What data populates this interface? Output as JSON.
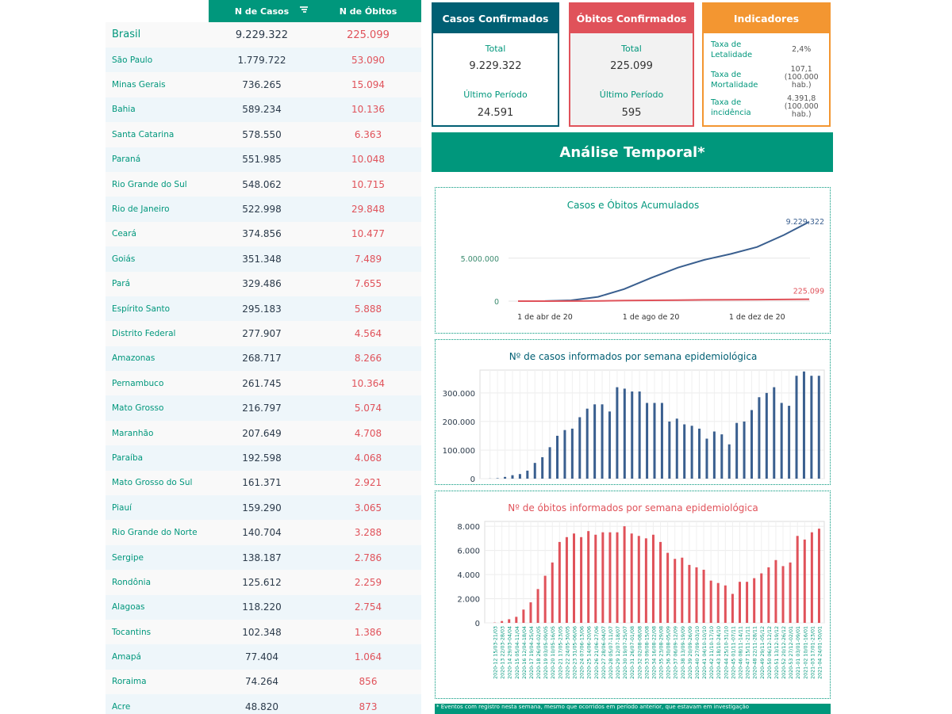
{
  "table": {
    "col_cases": "N de Casos",
    "col_deaths": "N de Óbitos",
    "rows": [
      {
        "name": "Brasil",
        "cases": "9.229.322",
        "deaths": "225.099"
      },
      {
        "name": "São Paulo",
        "cases": "1.779.722",
        "deaths": "53.090"
      },
      {
        "name": "Minas Gerais",
        "cases": "736.265",
        "deaths": "15.094"
      },
      {
        "name": "Bahia",
        "cases": "589.234",
        "deaths": "10.136"
      },
      {
        "name": "Santa Catarina",
        "cases": "578.550",
        "deaths": "6.363"
      },
      {
        "name": "Paraná",
        "cases": "551.985",
        "deaths": "10.048"
      },
      {
        "name": "Rio Grande do Sul",
        "cases": "548.062",
        "deaths": "10.715"
      },
      {
        "name": "Rio de Janeiro",
        "cases": "522.998",
        "deaths": "29.848"
      },
      {
        "name": "Ceará",
        "cases": "374.856",
        "deaths": "10.477"
      },
      {
        "name": "Goiás",
        "cases": "351.348",
        "deaths": "7.489"
      },
      {
        "name": "Pará",
        "cases": "329.486",
        "deaths": "7.655"
      },
      {
        "name": "Espírito Santo",
        "cases": "295.183",
        "deaths": "5.888"
      },
      {
        "name": "Distrito Federal",
        "cases": "277.907",
        "deaths": "4.564"
      },
      {
        "name": "Amazonas",
        "cases": "268.717",
        "deaths": "8.266"
      },
      {
        "name": "Pernambuco",
        "cases": "261.745",
        "deaths": "10.364"
      },
      {
        "name": "Mato Grosso",
        "cases": "216.797",
        "deaths": "5.074"
      },
      {
        "name": "Maranhão",
        "cases": "207.649",
        "deaths": "4.708"
      },
      {
        "name": "Paraíba",
        "cases": "192.598",
        "deaths": "4.068"
      },
      {
        "name": "Mato Grosso do Sul",
        "cases": "161.371",
        "deaths": "2.921"
      },
      {
        "name": "Piauí",
        "cases": "159.290",
        "deaths": "3.065"
      },
      {
        "name": "Rio Grande do Norte",
        "cases": "140.704",
        "deaths": "3.288"
      },
      {
        "name": "Sergipe",
        "cases": "138.187",
        "deaths": "2.786"
      },
      {
        "name": "Rondônia",
        "cases": "125.612",
        "deaths": "2.259"
      },
      {
        "name": "Alagoas",
        "cases": "118.220",
        "deaths": "2.754"
      },
      {
        "name": "Tocantins",
        "cases": "102.348",
        "deaths": "1.386"
      },
      {
        "name": "Amapá",
        "cases": "77.404",
        "deaths": "1.064"
      },
      {
        "name": "Roraima",
        "cases": "74.264",
        "deaths": "856"
      },
      {
        "name": "Acre",
        "cases": "48.820",
        "deaths": "873"
      }
    ]
  },
  "cards": {
    "cases": {
      "title": "Casos Confirmados",
      "total_label": "Total",
      "total": "9.229.322",
      "period_label": "Último Período",
      "period": "24.591"
    },
    "deaths": {
      "title": "Óbitos Confirmados",
      "total_label": "Total",
      "total": "225.099",
      "period_label": "Último Período",
      "period": "595"
    },
    "indicators": {
      "title": "Indicadores",
      "rows": [
        {
          "name": "Taxa de Letalidade",
          "value": "2,4%"
        },
        {
          "name": "Taxa de Mortalidade",
          "value": "107,1 (100.000 hab.)"
        },
        {
          "name": "Taxa de incidência",
          "value": "4.391,8 (100.000 hab.)"
        }
      ]
    }
  },
  "banner": "Análise Temporal*",
  "footer": "* Eventos com registro nesta semana, mesmo que ocorridos em período anterior, que estavam em investigação",
  "colors": {
    "teal": "#00977c",
    "navy": "#005f73",
    "red": "#e0525a",
    "orange": "#f39631",
    "series_blue": "#3a5f8f"
  },
  "chart_data": [
    {
      "type": "line",
      "title": "Casos e Óbitos Acumulados",
      "x_ticks": [
        "1 de abr de 20",
        "1 de ago de 20",
        "1 de dez de 20"
      ],
      "y_ticks": [
        "0",
        "5.000.000"
      ],
      "ylim": [
        0,
        9500000
      ],
      "x": [
        "2020-03-01",
        "2020-04-01",
        "2020-05-01",
        "2020-06-01",
        "2020-07-01",
        "2020-08-01",
        "2020-09-01",
        "2020-10-01",
        "2020-11-01",
        "2020-12-01",
        "2021-01-01",
        "2021-01-30"
      ],
      "series": [
        {
          "label": "9.229.322",
          "values": [
            0,
            6000,
            90000,
            500000,
            1400000,
            2700000,
            3900000,
            4800000,
            5500000,
            6300000,
            7700000,
            9229322
          ]
        },
        {
          "label": "225.099",
          "values": [
            0,
            300,
            6000,
            30000,
            60000,
            93000,
            122000,
            144000,
            160000,
            173000,
            195000,
            225099
          ]
        }
      ]
    },
    {
      "type": "bar",
      "title": "Nº de casos informados por semana epidemiológica",
      "y_ticks": [
        "0",
        "100.000",
        "200.000",
        "300.000"
      ],
      "ylim": [
        0,
        380000
      ],
      "values": [
        400,
        1500,
        6000,
        12000,
        16000,
        28000,
        55000,
        75000,
        110000,
        150000,
        170000,
        175000,
        215000,
        245000,
        260000,
        260000,
        235000,
        320000,
        315000,
        305000,
        305000,
        265000,
        265000,
        265000,
        200000,
        210000,
        190000,
        185000,
        175000,
        140000,
        165000,
        155000,
        120000,
        195000,
        200000,
        240000,
        285000,
        300000,
        320000,
        265000,
        255000,
        360000,
        375000,
        360000,
        360000
      ]
    },
    {
      "type": "bar",
      "title": "Nº de óbitos informados por semana epidemiológica",
      "y_ticks": [
        "0",
        "2.000",
        "4.000",
        "6.000",
        "8.000"
      ],
      "ylim": [
        0,
        8400
      ],
      "categories": [
        "2020-12 15/03-21/03",
        "2020-13 22/03-28/03",
        "2020-14 29/03-04/04",
        "2020-15 05/04-11/04",
        "2020-16 12/04-18/04",
        "2020-17 19/04-25/04",
        "2020-18 26/04-02/05",
        "2020-19 03/05-09/05",
        "2020-20 10/05-16/05",
        "2020-21 17/05-23/05",
        "2020-22 24/05-30/05",
        "2020-23 31/05-06/06",
        "2020-24 07/06-13/06",
        "2020-25 14/06-20/06",
        "2020-26 21/06-27/06",
        "2020-27 28/06-04/07",
        "2020-28 05/07-11/07",
        "2020-29 12/07-18/07",
        "2020-30 19/07-25/07",
        "2020-31 26/07-01/08",
        "2020-32 02/08-08/08",
        "2020-33 09/08-15/08",
        "2020-34 16/08-22/08",
        "2020-35 23/08-29/08",
        "2020-36 30/08-05/09",
        "2020-37 06/09-12/09",
        "2020-38 13/09-19/09",
        "2020-39 20/09-26/09",
        "2020-40 27/09-03/10",
        "2020-41 04/10-10/10",
        "2020-42 11/10-17/10",
        "2020-43 18/10-24/10",
        "2020-44 25/10-31/10",
        "2020-45 01/11-07/11",
        "2020-46 08/11-14/11",
        "2020-47 15/11-21/11",
        "2020-48 22/11-28/11",
        "2020-49 29/11-05/12",
        "2020-50 06/12-12/12",
        "2020-51 13/12-19/12",
        "2020-52 20/12-26/12",
        "2020-53 27/12-02/01",
        "2021-01 03/01-09/01",
        "2021-02 10/01-16/01",
        "2021-03 17/01-23/01",
        "2021-04 24/01-30/01"
      ],
      "values": [
        20,
        150,
        300,
        500,
        1100,
        1700,
        2800,
        3900,
        5000,
        6700,
        7100,
        7400,
        7100,
        7600,
        7300,
        7500,
        7500,
        7500,
        8000,
        7400,
        7200,
        7000,
        7300,
        6700,
        5800,
        5300,
        5400,
        4800,
        4600,
        4400,
        3500,
        3300,
        3100,
        2400,
        3400,
        3400,
        3700,
        4100,
        4600,
        5200,
        4700,
        5000,
        7200,
        6900,
        7500,
        7800
      ]
    }
  ]
}
